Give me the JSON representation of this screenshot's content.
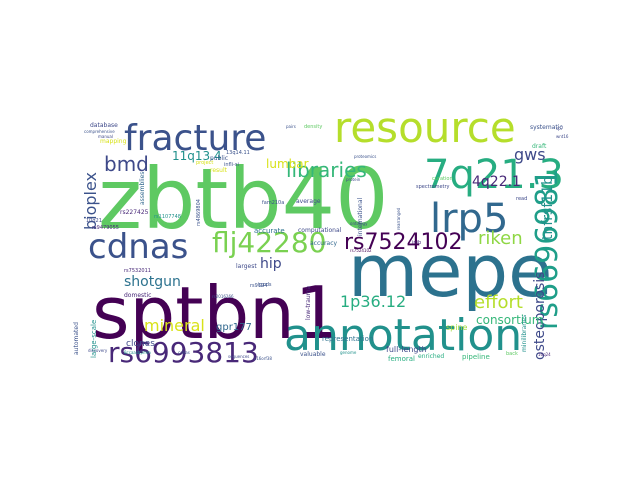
{
  "words": [
    {
      "text": "zbtb40",
      "color": "#5ec962",
      "vertical": false
    },
    {
      "text": "sptbn1",
      "color": "#440154",
      "vertical": false
    },
    {
      "text": "mepe",
      "color": "#2c728e",
      "vertical": false
    },
    {
      "text": "annotation",
      "color": "#21918c",
      "vertical": false
    },
    {
      "text": "resource",
      "color": "#b5de2b",
      "vertical": false
    },
    {
      "text": "fracture",
      "color": "#3b528b",
      "vertical": false
    },
    {
      "text": "7q21.3",
      "color": "#27ad81",
      "vertical": false
    },
    {
      "text": "lrp5",
      "color": "#31688e",
      "vertical": false
    },
    {
      "text": "cdnas",
      "color": "#3b528b",
      "vertical": false
    },
    {
      "text": "flj42280",
      "color": "#7ad151",
      "vertical": false
    },
    {
      "text": "rs6993813",
      "color": "#482878",
      "vertical": false
    },
    {
      "text": "rs7524102",
      "color": "#440154",
      "vertical": false
    },
    {
      "text": "rs6696981",
      "color": "#1f9e89",
      "vertical": true
    },
    {
      "text": "bmd",
      "color": "#3e4989",
      "vertical": false
    },
    {
      "text": "libraries",
      "color": "#35b779",
      "vertical": false
    },
    {
      "text": "riken",
      "color": "#8fd744",
      "vertical": false
    },
    {
      "text": "gws",
      "color": "#3e4989",
      "vertical": false
    },
    {
      "text": "4q22.1",
      "color": "#482878",
      "vertical": false
    },
    {
      "text": "1p36.12",
      "color": "#27ad81",
      "vertical": false
    },
    {
      "text": "effort",
      "color": "#b5de2b",
      "vertical": false
    },
    {
      "text": "mineral",
      "color": "#d8e219",
      "vertical": false
    },
    {
      "text": "shotgun",
      "color": "#2c728e",
      "vertical": false
    },
    {
      "text": "hip",
      "color": "#3e4989",
      "vertical": false
    },
    {
      "text": "lumbar",
      "color": "#d8e219",
      "vertical": false
    },
    {
      "text": "11q13.4",
      "color": "#21918c",
      "vertical": false
    },
    {
      "text": "bioplex",
      "color": "#3b528b",
      "vertical": true
    },
    {
      "text": "tnfrsf11b",
      "color": "#21918c",
      "vertical": true
    },
    {
      "text": "osteoporosis",
      "color": "#3e4989",
      "vertical": true
    },
    {
      "text": "consortium",
      "color": "#35b779",
      "vertical": false
    },
    {
      "text": "gpr177",
      "color": "#31688e",
      "vertical": false
    },
    {
      "text": "full-length",
      "color": "#3e4989",
      "vertical": false
    },
    {
      "text": "femoral",
      "color": "#27ad81",
      "vertical": false
    },
    {
      "text": "spine",
      "color": "#a0da39",
      "vertical": false
    },
    {
      "text": "representation",
      "color": "#2c728e",
      "vertical": false
    },
    {
      "text": "pipeline",
      "color": "#35b779",
      "vertical": false
    },
    {
      "text": "enriched",
      "color": "#27ad81",
      "vertical": false
    },
    {
      "text": "clones",
      "color": "#3e4989",
      "vertical": false
    },
    {
      "text": "large-scale",
      "color": "#21918c",
      "vertical": true
    },
    {
      "text": "automated",
      "color": "#3b528b",
      "vertical": true
    },
    {
      "text": "minilibraries",
      "color": "#21918c",
      "vertical": true
    },
    {
      "text": "low-trauma",
      "color": "#482878",
      "vertical": true
    },
    {
      "text": "rs7524102",
      "color": "#440154",
      "vertical": false
    },
    {
      "text": "rs227425",
      "color": "#482878",
      "vertical": false
    },
    {
      "text": "largest",
      "color": "#3e4989",
      "vertical": false
    },
    {
      "text": "domestic",
      "color": "#482878",
      "vertical": false
    },
    {
      "text": "accurate",
      "color": "#2c728e",
      "vertical": false
    },
    {
      "text": "accuracy",
      "color": "#31688e",
      "vertical": false
    },
    {
      "text": "international",
      "color": "#3b528b",
      "vertical": true
    },
    {
      "text": "computational",
      "color": "#3e4989",
      "vertical": false
    },
    {
      "text": "assemblies",
      "color": "#31688e",
      "vertical": true
    },
    {
      "text": "mapping",
      "color": "#d8e219",
      "vertical": false
    },
    {
      "text": "database",
      "color": "#3e4989",
      "vertical": false
    },
    {
      "text": "comprehensive",
      "color": "#3b528b",
      "vertical": false
    },
    {
      "text": "public",
      "color": "#3b528b",
      "vertical": false
    },
    {
      "text": "average",
      "color": "#3e4989",
      "vertical": false
    },
    {
      "text": "draft",
      "color": "#35b779",
      "vertical": false
    },
    {
      "text": "systematic",
      "color": "#3b528b",
      "vertical": false
    },
    {
      "text": "curation",
      "color": "#5ec962",
      "vertical": false
    },
    {
      "text": "spectrometry",
      "color": "#3e4989",
      "vertical": false
    },
    {
      "text": "density",
      "color": "#5ec962",
      "vertical": false
    },
    {
      "text": "proteomics",
      "color": "#3b528b",
      "vertical": false
    },
    {
      "text": "inib",
      "color": "#482878",
      "vertical": false
    },
    {
      "text": "read",
      "color": "#3e4989",
      "vertical": false
    },
    {
      "text": "genome",
      "color": "#21918c",
      "vertical": false
    },
    {
      "text": "valuable",
      "color": "#3b528b",
      "vertical": false
    },
    {
      "text": "discovery",
      "color": "#3e4989",
      "vertical": false
    },
    {
      "text": "16q24",
      "color": "#482878",
      "vertical": false
    },
    {
      "text": "back",
      "color": "#5ec962",
      "vertical": false
    },
    {
      "text": "result",
      "color": "#d8e219",
      "vertical": false
    },
    {
      "text": "13q14.11",
      "color": "#3b528b",
      "vertical": false
    },
    {
      "text": "infli-si",
      "color": "#3b528b",
      "vertical": false
    },
    {
      "text": "rs9479055",
      "color": "#482878",
      "vertical": false
    },
    {
      "text": "10q21",
      "color": "#3e4989",
      "vertical": false
    },
    {
      "text": "rs4869804",
      "color": "#3b528b",
      "vertical": true
    },
    {
      "text": "fam210a",
      "color": "#3b528b",
      "vertical": false
    },
    {
      "text": "rs1107748",
      "color": "#21918c",
      "vertical": false
    },
    {
      "text": "igpds",
      "color": "#3b528b",
      "vertical": false
    },
    {
      "text": "c16orf38",
      "color": "#3b528b",
      "vertical": false
    },
    {
      "text": "rs7532011",
      "color": "#482878",
      "vertical": false
    },
    {
      "text": "rs9194",
      "color": "#3b528b",
      "vertical": false
    },
    {
      "text": "wnt16",
      "color": "#3e4989",
      "vertical": false
    },
    {
      "text": "sp7",
      "color": "#3e4989",
      "vertical": false
    },
    {
      "text": "rs2016266",
      "color": "#3b528b",
      "vertical": false
    },
    {
      "text": "8ccaasbpmm",
      "color": "#21918c",
      "vertical": false
    },
    {
      "text": "cdnas",
      "color": "#3b528b",
      "vertical": false
    },
    {
      "text": "ontology",
      "color": "#3e4989",
      "vertical": false
    },
    {
      "text": "project",
      "color": "#d8e219",
      "vertical": false
    },
    {
      "text": "protein",
      "color": "#3e4989",
      "vertical": false
    },
    {
      "text": "pairs",
      "color": "#3b528b",
      "vertical": false
    },
    {
      "text": "sequences",
      "color": "#3e4989",
      "vertical": false
    },
    {
      "text": "rearranged",
      "color": "#3b528b",
      "vertical": true
    },
    {
      "text": "manual",
      "color": "#3e4989",
      "vertical": false
    }
  ]
}
